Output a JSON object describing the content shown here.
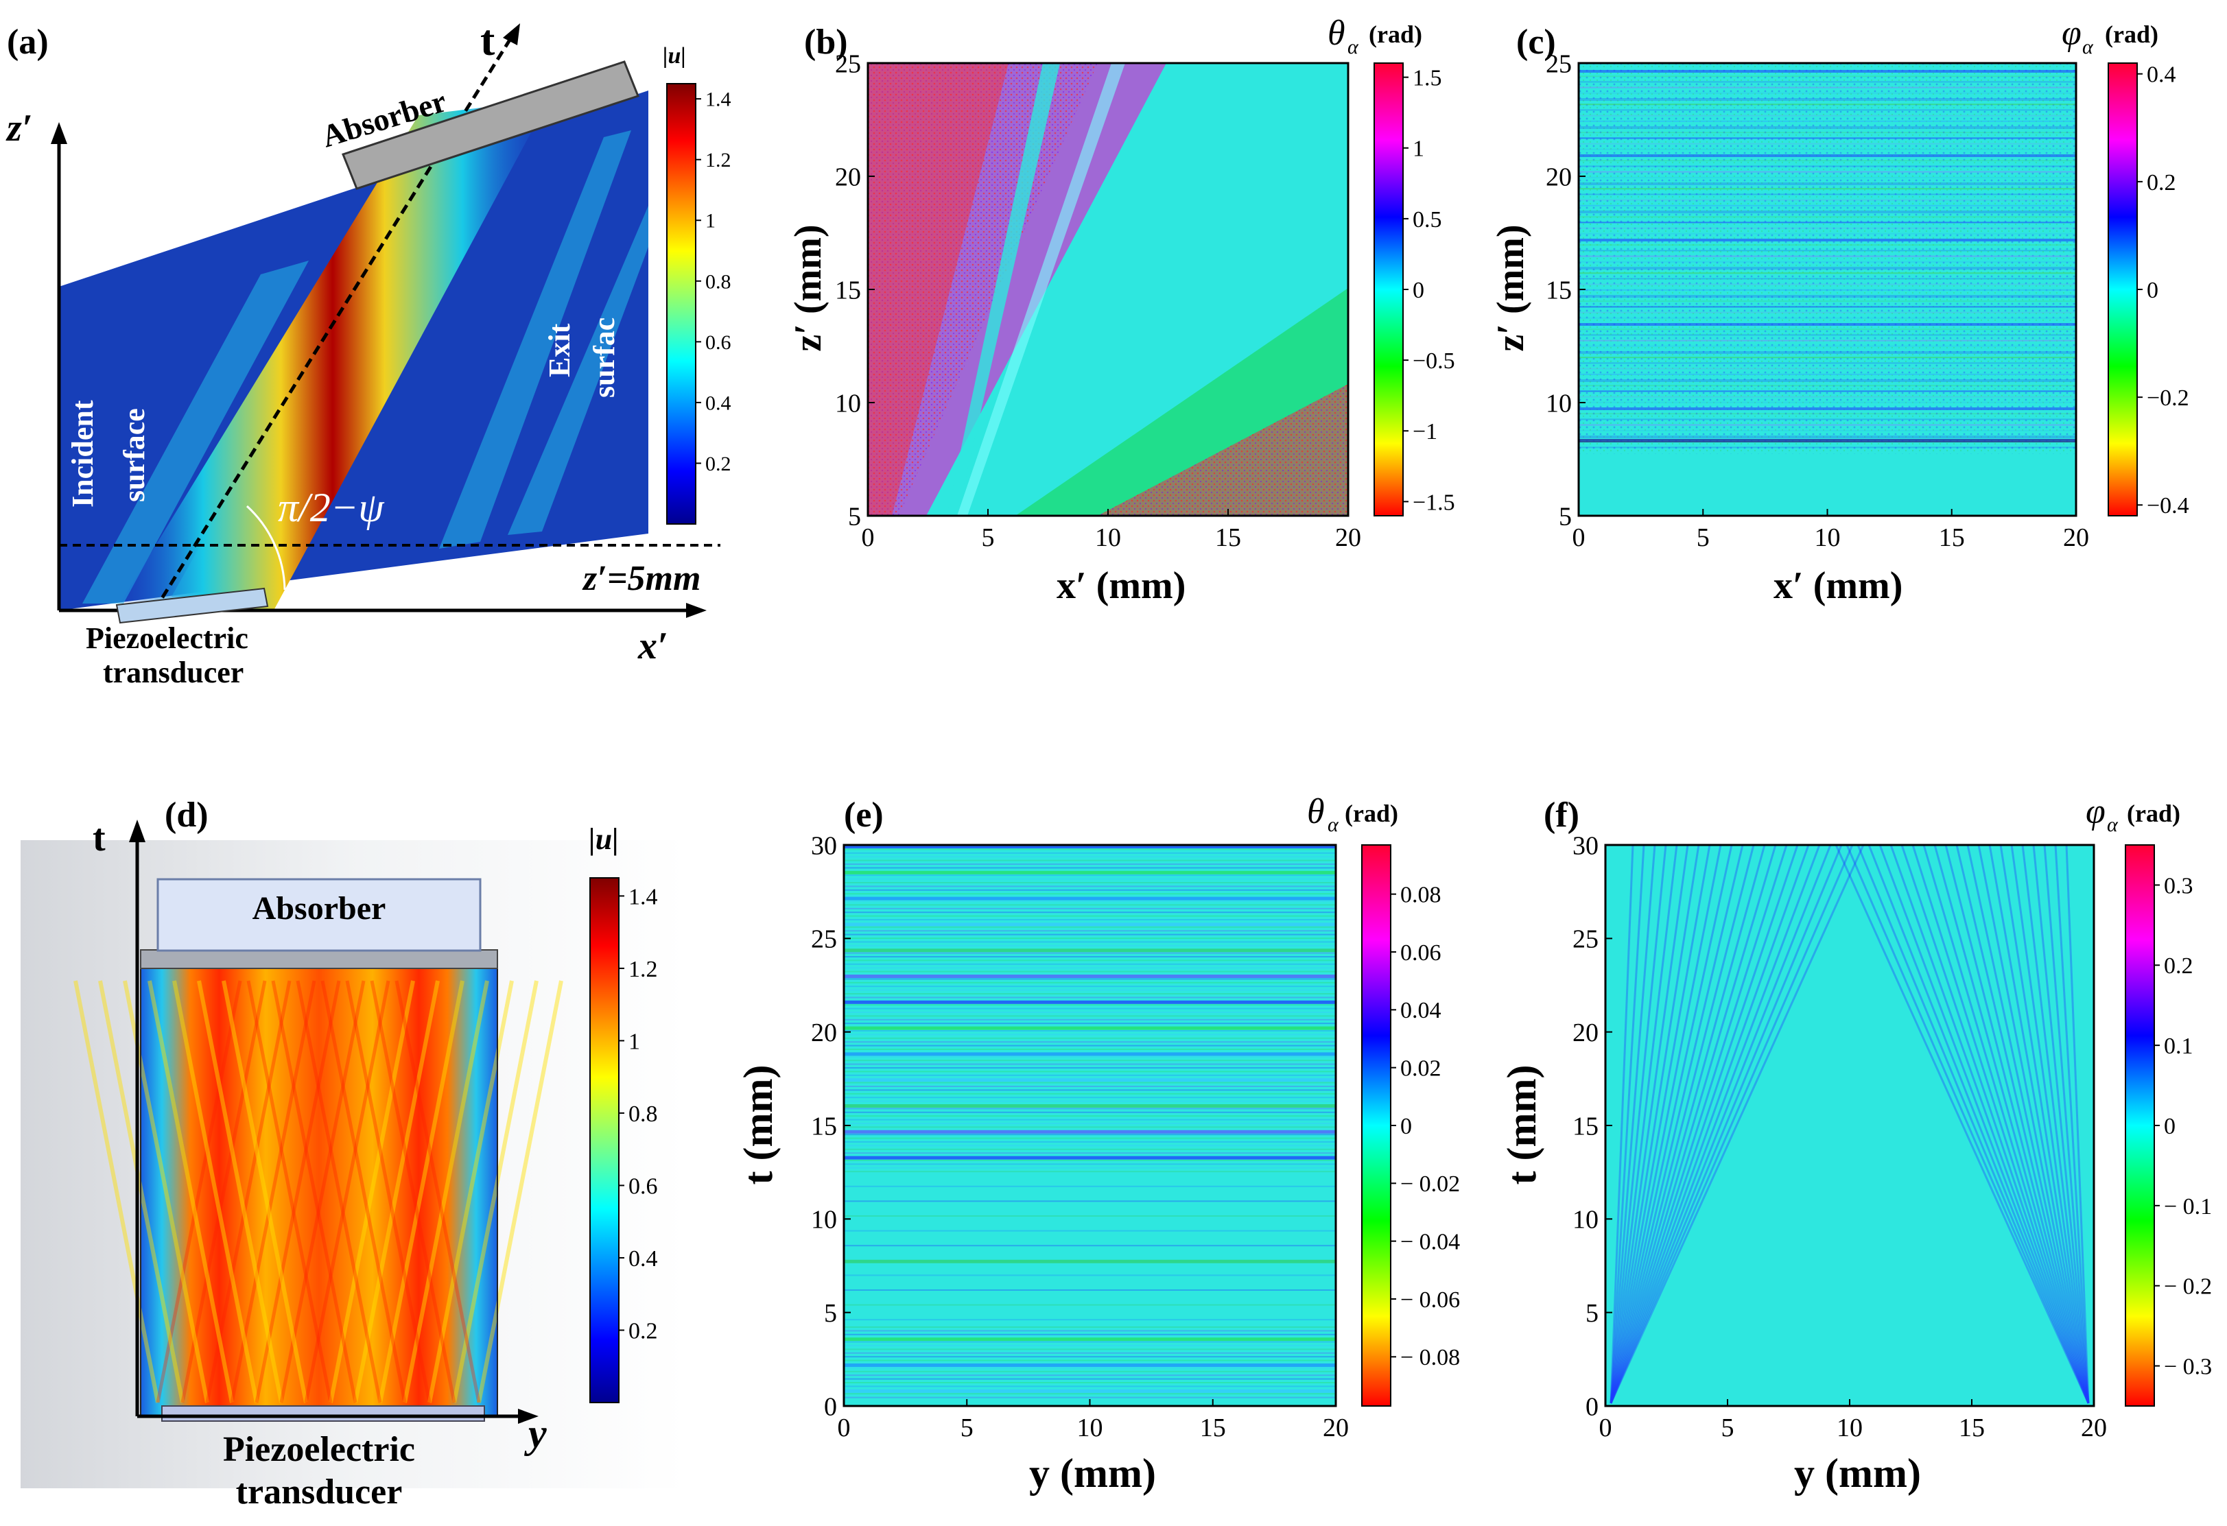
{
  "figure": {
    "panels": [
      {
        "id": "a",
        "label": "(a)"
      },
      {
        "id": "b",
        "label": "(b)"
      },
      {
        "id": "c",
        "label": "(c)"
      },
      {
        "id": "d",
        "label": "(d)"
      },
      {
        "id": "e",
        "label": "(e)"
      },
      {
        "id": "f",
        "label": "(f)"
      }
    ]
  },
  "panel_a": {
    "axis_t": "t",
    "axis_z": "z′",
    "axis_x": "x′",
    "absorber": "Absorber",
    "incident": "Incident",
    "surface": "surface",
    "exit": "Exit",
    "surfac": "surfac",
    "angle": "π/2−ψ",
    "zline": "z′=5mm",
    "piezo1": "Piezoelectric",
    "piezo2": "transducer"
  },
  "panel_d": {
    "axis_t": "t",
    "axis_y": "y",
    "absorber": "Absorber",
    "piezo1": "Piezoelectric",
    "piezo2": "transducer"
  },
  "chart_data": [
    {
      "panel": "a",
      "type": "heatmap",
      "quantity": "|u|",
      "colorbar_title": "|u|",
      "colorbar_ticks": [
        "1.4",
        "1.2",
        "1",
        "0.8",
        "0.6",
        "0.4",
        "0.2"
      ],
      "colorbar_values": [
        1.4,
        1.2,
        1.0,
        0.8,
        0.6,
        0.4,
        0.2
      ],
      "colorbar_range": [
        0,
        1.45
      ]
    },
    {
      "panel": "b",
      "type": "heatmap",
      "quantity": "theta_alpha",
      "cb_symbol": "θ",
      "cb_sub": "α",
      "cb_unit": "(rad)",
      "xlabel": "x′ (mm)",
      "ylabel": "z′ (mm)",
      "xticks": [
        "0",
        "5",
        "10",
        "15",
        "20"
      ],
      "xvalues": [
        0,
        5,
        10,
        15,
        20
      ],
      "xlim": [
        0,
        20
      ],
      "yticks": [
        "5",
        "10",
        "15",
        "20",
        "25"
      ],
      "yvalues": [
        5,
        10,
        15,
        20,
        25
      ],
      "ylim": [
        5,
        25
      ],
      "colorbar_ticks": [
        "1.5",
        "1",
        "0.5",
        "0",
        "−0.5",
        "−1",
        "−1.5"
      ],
      "colorbar_values": [
        1.5,
        1,
        0.5,
        0,
        -0.5,
        -1,
        -1.5
      ],
      "colorbar_range": [
        -1.6,
        1.6
      ]
    },
    {
      "panel": "c",
      "type": "heatmap",
      "quantity": "phi_alpha",
      "cb_symbol": "φ",
      "cb_sub": "α",
      "cb_unit": "(rad)",
      "xlabel": "x′ (mm)",
      "ylabel": "z′ (mm)",
      "xticks": [
        "0",
        "5",
        "10",
        "15",
        "20"
      ],
      "xvalues": [
        0,
        5,
        10,
        15,
        20
      ],
      "xlim": [
        0,
        20
      ],
      "yticks": [
        "5",
        "10",
        "15",
        "20",
        "25"
      ],
      "yvalues": [
        5,
        10,
        15,
        20,
        25
      ],
      "ylim": [
        5,
        25
      ],
      "colorbar_ticks": [
        "0.4",
        "0.2",
        "0",
        "−0.2",
        "−0.4"
      ],
      "colorbar_values": [
        0.4,
        0.2,
        0,
        -0.2,
        -0.4
      ],
      "colorbar_range": [
        -0.42,
        0.42
      ]
    },
    {
      "panel": "d",
      "type": "heatmap",
      "quantity": "|u|",
      "colorbar_title": "|u|",
      "colorbar_ticks": [
        "1.4",
        "1.2",
        "1",
        "0.8",
        "0.6",
        "0.4",
        "0.2"
      ],
      "colorbar_values": [
        1.4,
        1.2,
        1.0,
        0.8,
        0.6,
        0.4,
        0.2
      ],
      "colorbar_range": [
        0,
        1.45
      ]
    },
    {
      "panel": "e",
      "type": "heatmap",
      "quantity": "theta_alpha",
      "cb_symbol": "θ",
      "cb_sub": "α",
      "cb_unit": "(rad)",
      "xlabel": "y (mm)",
      "ylabel": "t (mm)",
      "xticks": [
        "0",
        "5",
        "10",
        "15",
        "20"
      ],
      "xvalues": [
        0,
        5,
        10,
        15,
        20
      ],
      "xlim": [
        0,
        20
      ],
      "yticks": [
        "0",
        "5",
        "10",
        "15",
        "20",
        "25",
        "30"
      ],
      "yvalues": [
        0,
        5,
        10,
        15,
        20,
        25,
        30
      ],
      "ylim": [
        0,
        30
      ],
      "colorbar_ticks": [
        "0.08",
        "0.06",
        "0.04",
        "0.02",
        "0",
        "− 0.02",
        "− 0.04",
        "− 0.06",
        "− 0.08"
      ],
      "colorbar_values": [
        0.08,
        0.06,
        0.04,
        0.02,
        0,
        -0.02,
        -0.04,
        -0.06,
        -0.08
      ],
      "colorbar_range": [
        -0.097,
        0.097
      ]
    },
    {
      "panel": "f",
      "type": "heatmap",
      "quantity": "phi_alpha",
      "cb_symbol": "φ",
      "cb_sub": "α",
      "cb_unit": "(rad)",
      "xlabel": "y (mm)",
      "ylabel": "t (mm)",
      "xticks": [
        "0",
        "5",
        "10",
        "15",
        "20"
      ],
      "xvalues": [
        0,
        5,
        10,
        15,
        20
      ],
      "xlim": [
        0,
        20
      ],
      "yticks": [
        "0",
        "5",
        "10",
        "15",
        "20",
        "25",
        "30"
      ],
      "yvalues": [
        0,
        5,
        10,
        15,
        20,
        25,
        30
      ],
      "ylim": [
        0,
        30
      ],
      "colorbar_ticks": [
        "0.3",
        "0.2",
        "0.1",
        "0",
        "− 0.1",
        "− 0.2",
        "− 0.3"
      ],
      "colorbar_values": [
        0.3,
        0.2,
        0.1,
        0,
        -0.1,
        -0.2,
        -0.3
      ],
      "colorbar_range": [
        -0.35,
        0.35
      ]
    }
  ]
}
